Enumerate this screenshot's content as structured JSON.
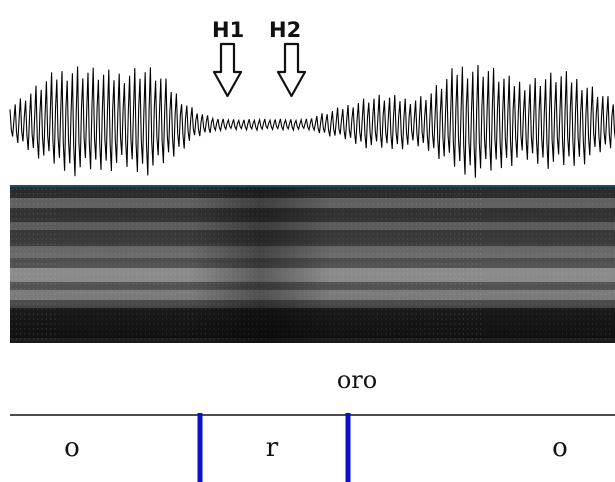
{
  "annotations": {
    "h1": "H1",
    "h2": "H2"
  },
  "word_tier": {
    "label": "oro"
  },
  "segment_tier": {
    "segments": [
      "o",
      "r",
      "o"
    ]
  },
  "colors": {
    "waveform": "#000000",
    "spectrogram_bg": "#1c1c1c",
    "spectrogram_border": "#1f4f5f",
    "boundary": "#0d10c8",
    "tier_line": "#111111"
  }
}
